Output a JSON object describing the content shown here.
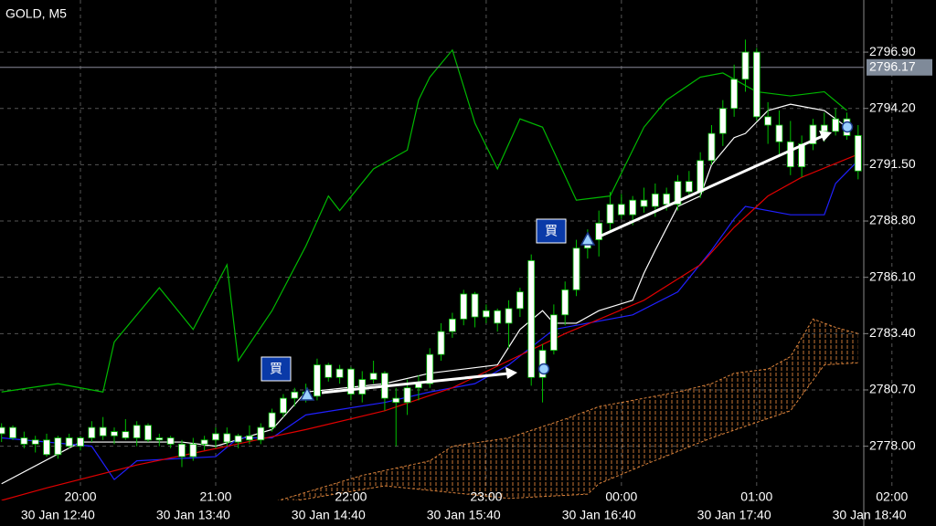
{
  "chart_data": {
    "type": "candlestick",
    "title": "GOLD, M5",
    "ylim": [
      2775.4,
      2799.4
    ],
    "yticks": [
      {
        "value": 2796.9,
        "label": "2796.90"
      },
      {
        "value": 2794.2,
        "label": "2794.20"
      },
      {
        "value": 2791.5,
        "label": "2791.50"
      },
      {
        "value": 2788.8,
        "label": "2788.80"
      },
      {
        "value": 2786.1,
        "label": "2786.10"
      },
      {
        "value": 2783.4,
        "label": "2783.40"
      },
      {
        "value": 2780.7,
        "label": "2780.70"
      },
      {
        "value": 2778.0,
        "label": "2778.00"
      }
    ],
    "grid": true,
    "current_price": 2796.17,
    "categories": [
      null,
      null,
      null,
      null,
      null,
      null,
      null,
      "20:00",
      null,
      null,
      null,
      null,
      null,
      null,
      null,
      null,
      null,
      null,
      null,
      "21:00",
      null,
      null,
      null,
      null,
      null,
      null,
      null,
      null,
      null,
      null,
      null,
      "22:00",
      null,
      null,
      null,
      null,
      null,
      null,
      null,
      null,
      null,
      null,
      null,
      "23:00",
      null,
      null,
      null,
      null,
      null,
      null,
      null,
      null,
      null,
      null,
      null,
      "00:00",
      null,
      null,
      null,
      null,
      null,
      null,
      null,
      null,
      null,
      null,
      null,
      "01:00",
      null,
      null,
      null,
      null,
      null,
      null,
      null,
      null,
      null,
      null,
      null,
      "02:00"
    ],
    "time_labels": [
      null,
      null,
      null,
      null,
      null,
      "30 Jan 12:40",
      null,
      null,
      null,
      null,
      null,
      null,
      null,
      null,
      null,
      null,
      null,
      "30 Jan 13:40",
      null,
      null,
      null,
      null,
      null,
      null,
      null,
      null,
      null,
      null,
      null,
      "30 Jan 14:40",
      null,
      null,
      null,
      null,
      null,
      null,
      null,
      null,
      null,
      null,
      null,
      "30 Jan 15:40",
      null,
      null,
      null,
      null,
      null,
      null,
      null,
      null,
      null,
      null,
      null,
      "30 Jan 16:40",
      null,
      null,
      null,
      null,
      null,
      null,
      null,
      null,
      null,
      null,
      null,
      "30 Jan 17:40",
      null,
      null,
      null,
      null,
      null,
      null,
      null,
      null,
      null,
      null,
      null,
      "30 Jan 18:40",
      null,
      null
    ],
    "open": [
      2778.6,
      2778.9,
      2778.4,
      2778.1,
      2778.3,
      2777.6,
      2778.4,
      2778.0,
      2778.4,
      2778.9,
      2778.5,
      2778.7,
      2778.4,
      2779.0,
      2778.3,
      2778.4,
      2778.1,
      2777.5,
      2778.1,
      2778.3,
      2778.6,
      2778.2,
      2778.5,
      2778.3,
      2778.9,
      2779.6,
      2780.3,
      2780.6,
      2780.4,
      2781.9,
      2781.3,
      2781.7,
      2780.5,
      2781.2,
      2781.5,
      2780.3,
      2780.1,
      2780.8,
      2781.0,
      2782.4,
      2783.5,
      2784.1,
      2785.3,
      2784.2,
      2784.5,
      2783.9,
      2784.6,
      2786.9,
      2781.3,
      2782.6,
      2784.3,
      2785.5,
      2787.5,
      2787.9,
      2788.7,
      2789.6,
      2789.1,
      2789.8,
      2789.5,
      2790.1,
      2789.6,
      2790.7,
      2790.2,
      2791.7,
      2793.0,
      2794.2,
      2795.6,
      2796.9,
      2793.8,
      2793.4,
      2792.6,
      2791.4,
      2792.5,
      2793.4,
      2793.1,
      2793.7,
      2792.9,
      null,
      null,
      null
    ],
    "high": [
      2779.1,
      2779.0,
      2778.7,
      2778.5,
      2778.6,
      2778.5,
      2778.6,
      2778.5,
      2779.2,
      2779.4,
      2778.9,
      2779.3,
      2779.2,
      2779.1,
      2778.6,
      2778.5,
      2778.3,
      2778.4,
      2778.5,
      2778.9,
      2778.9,
      2778.6,
      2779.0,
      2779.1,
      2779.8,
      2780.5,
      2780.8,
      2781.0,
      2782.2,
      2782.0,
      2781.9,
      2781.8,
      2781.6,
      2782.1,
      2781.6,
      2780.8,
      2781.2,
      2781.4,
      2782.7,
      2783.9,
      2784.4,
      2785.5,
      2785.4,
      2784.8,
      2784.6,
      2785.0,
      2785.6,
      2787.2,
      2782.9,
      2784.8,
      2785.9,
      2787.9,
      2788.4,
      2789.3,
      2790.2,
      2790.1,
      2790.0,
      2790.4,
      2790.6,
      2790.4,
      2791.0,
      2791.2,
      2792.1,
      2793.4,
      2794.6,
      2796.3,
      2797.5,
      2797.1,
      2794.5,
      2794.1,
      2793.6,
      2792.9,
      2793.7,
      2794.0,
      2794.2,
      2794.0,
      2793.4,
      null,
      null,
      null
    ],
    "low": [
      2778.2,
      2778.3,
      2777.9,
      2777.7,
      2777.5,
      2777.4,
      2777.9,
      2777.8,
      2778.2,
      2778.3,
      2778.1,
      2778.3,
      2778.0,
      2778.2,
      2778.0,
      2777.9,
      2777.0,
      2777.3,
      2777.8,
      2777.9,
      2778.0,
      2777.9,
      2778.1,
      2778.1,
      2778.7,
      2779.4,
      2779.9,
      2780.1,
      2780.2,
      2781.1,
      2781.0,
      2780.2,
      2780.1,
      2781.0,
      2779.7,
      2778.0,
      2779.5,
      2780.2,
      2780.8,
      2782.1,
      2783.2,
      2783.8,
      2783.7,
      2783.9,
      2783.5,
      2782.7,
      2784.2,
      2780.9,
      2780.1,
      2782.4,
      2783.8,
      2785.2,
      2787.0,
      2787.1,
      2788.3,
      2788.9,
      2788.6,
      2789.2,
      2789.0,
      2789.3,
      2789.3,
      2790.0,
      2789.9,
      2791.5,
      2792.4,
      2793.8,
      2795.0,
      2793.6,
      2792.5,
      2792.0,
      2791.0,
      2790.9,
      2792.2,
      2792.6,
      2792.9,
      2792.7,
      2790.8,
      null,
      null,
      null
    ],
    "close": [
      2778.9,
      2778.4,
      2778.1,
      2778.3,
      2777.6,
      2778.4,
      2778.0,
      2778.4,
      2778.9,
      2778.5,
      2778.7,
      2778.4,
      2779.0,
      2778.3,
      2778.4,
      2778.1,
      2777.5,
      2778.1,
      2778.3,
      2778.6,
      2778.2,
      2778.5,
      2778.3,
      2778.9,
      2779.6,
      2780.3,
      2780.6,
      2780.4,
      2781.9,
      2781.3,
      2781.7,
      2780.5,
      2781.2,
      2781.5,
      2780.3,
      2780.1,
      2780.8,
      2781.0,
      2782.4,
      2783.5,
      2784.1,
      2785.3,
      2784.2,
      2784.5,
      2783.9,
      2784.6,
      2785.4,
      2781.3,
      2782.6,
      2784.3,
      2785.5,
      2787.5,
      2787.9,
      2788.7,
      2789.6,
      2789.1,
      2789.8,
      2789.5,
      2790.1,
      2789.6,
      2790.7,
      2790.2,
      2791.7,
      2793.0,
      2794.2,
      2795.6,
      2796.9,
      2793.8,
      2793.4,
      2792.6,
      2791.4,
      2792.5,
      2793.4,
      2793.1,
      2793.7,
      2792.9,
      2791.2,
      null,
      null,
      null
    ],
    "indicators": [
      {
        "color": "#00b800",
        "x": [
          0,
          5,
          9,
          10,
          14,
          17,
          20,
          21,
          24,
          27,
          29,
          30,
          33,
          36,
          37,
          38,
          40,
          42,
          44,
          46,
          48,
          51,
          54,
          57,
          59,
          62,
          64,
          67,
          70,
          73,
          75
        ],
        "values": [
          2780.6,
          2781.0,
          2780.6,
          2783.0,
          2785.6,
          2783.6,
          2786.7,
          2782.1,
          2784.5,
          2787.6,
          2790.0,
          2789.3,
          2791.3,
          2792.2,
          2794.6,
          2795.7,
          2797.0,
          2793.5,
          2791.3,
          2793.7,
          2793.3,
          2789.8,
          2790.0,
          2793.3,
          2794.6,
          2795.7,
          2795.9,
          2795.0,
          2794.8,
          2795.0,
          2794.1
        ]
      },
      {
        "color": "#ffffff",
        "x": [
          0,
          7,
          16,
          19,
          24,
          27,
          34,
          38,
          44,
          46,
          48,
          49,
          51,
          53,
          56,
          57,
          58,
          60,
          62,
          63,
          65,
          66,
          68,
          70,
          73,
          75
        ],
        "values": [
          2776.2,
          2778.2,
          2778.2,
          2778.0,
          2778.8,
          2780.6,
          2781.0,
          2781.5,
          2781.9,
          2783.6,
          2784.5,
          2783.9,
          2783.9,
          2784.5,
          2785.0,
          2786.3,
          2787.4,
          2789.5,
          2790.0,
          2791.5,
          2792.8,
          2793.0,
          2794.1,
          2794.4,
          2794.1,
          2793.3
        ]
      },
      {
        "color": "#2020ff",
        "x": [
          0,
          8,
          10,
          12,
          19,
          21,
          23,
          24,
          27,
          34,
          38,
          42,
          45,
          49,
          56,
          60,
          63,
          65,
          66,
          70,
          73,
          74,
          76
        ],
        "values": [
          2778.4,
          2778.0,
          2776.4,
          2777.3,
          2777.5,
          2778.4,
          2778.4,
          2778.4,
          2779.5,
          2780.1,
          2780.6,
          2781.0,
          2781.9,
          2783.6,
          2784.3,
          2785.4,
          2787.4,
          2788.9,
          2789.5,
          2789.1,
          2789.1,
          2790.6,
          2791.7
        ]
      },
      {
        "color": "#e00000",
        "x": [
          0,
          4,
          12,
          20,
          27,
          34,
          40,
          45,
          50,
          57,
          62,
          65,
          68,
          71,
          76
        ],
        "values": [
          2775.4,
          2776.0,
          2777.1,
          2778.0,
          2778.8,
          2779.7,
          2780.8,
          2782.1,
          2783.4,
          2785.0,
          2786.7,
          2788.5,
          2790.0,
          2790.9,
          2792.0
        ]
      }
    ],
    "cloud": {
      "color": "#d9823b",
      "span_a": {
        "x": [
          24,
          32,
          38,
          40,
          45,
          50,
          53,
          57,
          60,
          63,
          65,
          68,
          70,
          71,
          72,
          74,
          76
        ],
        "values": [
          2775.3,
          2776.6,
          2777.3,
          2778.0,
          2778.4,
          2779.3,
          2779.9,
          2780.3,
          2780.6,
          2781.0,
          2781.5,
          2781.7,
          2782.3,
          2783.2,
          2784.1,
          2783.7,
          2783.4
        ]
      },
      "span_b": {
        "x": [
          24,
          34,
          45,
          52,
          53,
          57,
          63,
          70,
          73,
          76
        ],
        "values": [
          2775.2,
          2776.1,
          2775.5,
          2775.7,
          2776.2,
          2777.1,
          2778.4,
          2779.7,
          2781.9,
          2782.0
        ]
      }
    },
    "annotations": [
      "買",
      "買"
    ]
  }
}
